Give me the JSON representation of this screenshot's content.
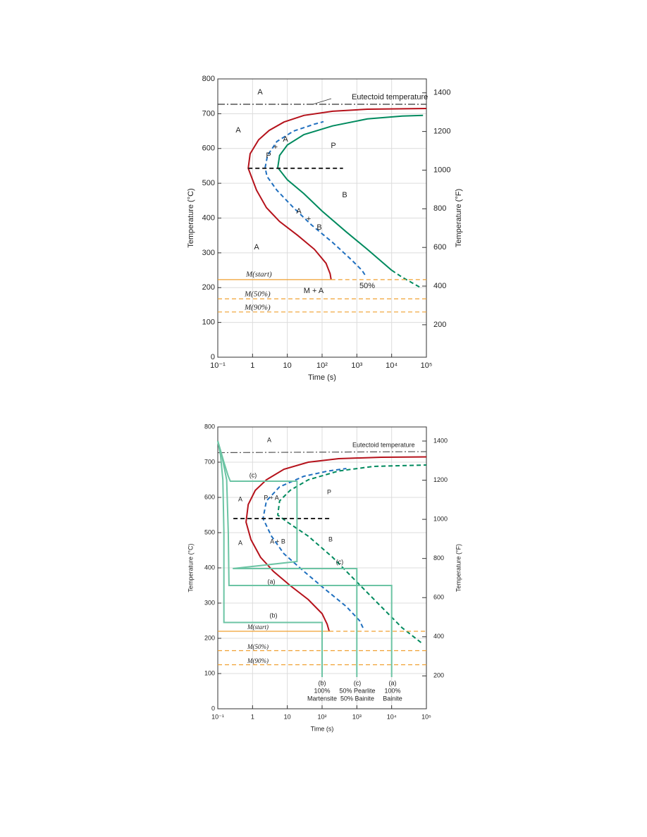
{
  "chart_data": [
    {
      "type": "line",
      "xscale": "log",
      "grid": true,
      "xlabel": "Time (s)",
      "ylabel": "Temperature (°C)",
      "y2label": "Temperature (°F)",
      "xlim": [
        0.1,
        100000
      ],
      "xticks": [
        {
          "value": 0.1,
          "label": "10⁻¹"
        },
        1,
        10,
        {
          "value": 100,
          "label": "10²"
        },
        {
          "value": 1000,
          "label": "10³"
        },
        {
          "value": 10000,
          "label": "10⁴"
        },
        {
          "value": 100000,
          "label": "10⁵"
        }
      ],
      "ylim": [
        0,
        800
      ],
      "yticks": [
        0,
        100,
        200,
        300,
        400,
        500,
        600,
        700,
        800
      ],
      "y2lim": [
        32,
        1472
      ],
      "y2ticks": [
        200,
        400,
        600,
        800,
        1000,
        1200,
        1400
      ],
      "series": [
        {
          "color": "#b5121b",
          "dash": "solid",
          "x": [
            182,
            170,
            130,
            60,
            20,
            6,
            2.5,
            1.3,
            0.75,
            0.85,
            1.5,
            3,
            8,
            30,
            200,
            2000,
            100000
          ],
          "values": [
            223,
            240,
            270,
            310,
            350,
            390,
            430,
            480,
            543,
            585,
            625,
            652,
            676,
            695,
            707,
            713,
            715
          ]
        },
        {
          "color": "#1f6fbf",
          "dash": "dashed",
          "x": [
            1700,
            1400,
            700,
            200,
            50,
            15,
            5,
            2.6,
            2.3,
            2.7,
            5,
            15,
            60,
            110
          ],
          "values": [
            237,
            250,
            280,
            330,
            380,
            430,
            480,
            520,
            545,
            580,
            620,
            650,
            670,
            677
          ]
        },
        {
          "color": "#008a5e",
          "dash": "solid",
          "x": [
            10000,
            2000,
            500,
            100,
            30,
            10,
            5.3,
            6,
            10,
            30,
            200,
            2000,
            20000,
            80000
          ],
          "values": [
            250,
            310,
            360,
            420,
            470,
            510,
            545,
            580,
            610,
            640,
            665,
            685,
            693,
            695
          ]
        },
        {
          "color": "#008a5e",
          "dash": "dashed",
          "x": [
            63000,
            20000,
            10000
          ],
          "values": [
            202,
            230,
            250
          ]
        },
        {
          "color": "#222222",
          "dash": "dashed",
          "x": [
            0.75,
            400
          ],
          "values": [
            543,
            543
          ]
        },
        {
          "color": "#333333",
          "dash": "dashdot",
          "x": [
            0.1,
            100000
          ],
          "values": [
            727,
            727
          ]
        },
        {
          "color": "#f0a030",
          "dash": "solid",
          "x": [
            0.1,
            182
          ],
          "values": [
            223,
            223
          ]
        },
        {
          "color": "#f0a030",
          "dash": "dashed",
          "x": [
            182,
            100000
          ],
          "values": [
            223,
            223
          ]
        },
        {
          "color": "#f0a030",
          "dash": "dashed",
          "x": [
            0.1,
            100000
          ],
          "values": [
            168,
            168
          ]
        },
        {
          "color": "#f0a030",
          "dash": "dashed",
          "x": [
            0.1,
            100000
          ],
          "values": [
            130,
            130
          ]
        }
      ],
      "annotations": [
        "A",
        "Eutectoid temperature",
        "A",
        "P",
        "+",
        "A",
        "P",
        "B",
        "A",
        "+",
        "B",
        "A",
        "M(start)",
        "50%",
        "M + A",
        "M(50%)",
        "M(90%)"
      ]
    },
    {
      "type": "line",
      "xscale": "log",
      "grid": true,
      "xlabel": "Time (s)",
      "ylabel": "Temperature (°C)",
      "y2label": "Temperature (°F)",
      "xlim": [
        0.1,
        100000
      ],
      "xticks": [
        {
          "value": 0.1,
          "label": "10⁻¹"
        },
        1,
        10,
        {
          "value": 100,
          "label": "10²"
        },
        {
          "value": 1000,
          "label": "10³"
        },
        {
          "value": 10000,
          "label": "10⁴"
        },
        {
          "value": 100000,
          "label": "10⁵"
        }
      ],
      "ylim": [
        0,
        800
      ],
      "yticks": [
        0,
        100,
        200,
        300,
        400,
        500,
        600,
        700,
        800
      ],
      "y2lim": [
        32,
        1472
      ],
      "y2ticks": [
        200,
        400,
        600,
        800,
        1000,
        1200,
        1400
      ],
      "series": [
        {
          "color": "#b5121b",
          "dash": "solid",
          "x": [
            160,
            140,
            100,
            40,
            12,
            4,
            1.7,
            0.9,
            0.65,
            0.75,
            1.2,
            2.5,
            8,
            40,
            300,
            5000,
            100000
          ],
          "values": [
            220,
            240,
            270,
            310,
            350,
            390,
            430,
            480,
            530,
            580,
            620,
            650,
            680,
            700,
            710,
            714,
            715
          ]
        },
        {
          "color": "#1f6fbf",
          "dash": "dashed",
          "x": [
            1500,
            1200,
            500,
            120,
            30,
            8,
            3.5,
            2,
            2.5,
            6,
            30,
            150,
            500
          ],
          "values": [
            230,
            250,
            290,
            340,
            390,
            440,
            490,
            540,
            590,
            630,
            660,
            675,
            682
          ]
        },
        {
          "color": "#008a5e",
          "dash": "dashed",
          "x": [
            70000,
            20000,
            5000,
            1000,
            200,
            40,
            10,
            5.3,
            6,
            12,
            40,
            300,
            3000,
            100000
          ],
          "values": [
            188,
            230,
            290,
            360,
            430,
            490,
            530,
            550,
            590,
            620,
            650,
            675,
            688,
            692
          ]
        },
        {
          "color": "#222222",
          "dash": "dashed",
          "x": [
            0.28,
            165
          ],
          "values": [
            540,
            540
          ]
        },
        {
          "color": "#555555",
          "dash": "dashdot",
          "x": [
            0.1,
            100000
          ],
          "values": [
            727,
            730
          ]
        },
        {
          "color": "#f0a030",
          "dash": "solid",
          "x": [
            0.1,
            160
          ],
          "values": [
            220,
            220
          ]
        },
        {
          "color": "#f0a030",
          "dash": "dashed",
          "x": [
            160,
            100000
          ],
          "values": [
            220,
            220
          ]
        },
        {
          "color": "#f0a030",
          "dash": "dashed",
          "x": [
            0.1,
            100000
          ],
          "values": [
            165,
            165
          ]
        },
        {
          "color": "#f0a030",
          "dash": "dashed",
          "x": [
            0.1,
            100000
          ],
          "values": [
            125,
            125
          ]
        },
        {
          "color": "#6cc4a4",
          "dash": "solid",
          "x": [
            0.1,
            0.13,
            0.18,
            0.2,
            0.21,
            10000,
            10000
          ],
          "values": [
            760,
            720,
            650,
            500,
            350,
            350,
            90
          ]
        },
        {
          "color": "#6cc4a4",
          "dash": "solid",
          "x": [
            0.1,
            0.12,
            0.14,
            0.15,
            0.15,
            100,
            100
          ],
          "values": [
            760,
            720,
            650,
            500,
            245,
            245,
            90
          ]
        },
        {
          "color": "#6cc4a4",
          "dash": "solid",
          "x": [
            0.1,
            0.15,
            0.2,
            0.23,
            19,
            19,
            0.27,
            1000,
            1000
          ],
          "values": [
            760,
            700,
            660,
            646,
            646,
            418,
            398,
            398,
            90
          ]
        }
      ],
      "annotations": [
        "A",
        "Eutectoid temperature",
        "(c)",
        "A",
        "P + A",
        "P",
        "A",
        "A + B",
        "B",
        "(c)",
        "(a)",
        "(b)",
        "M(start)",
        "M(50%)",
        "M(90%)",
        "(b)",
        "100%",
        "Martensite",
        "(c)",
        "50% Pearlite",
        "50% Bainite",
        "(a)",
        "100%",
        "Bainite"
      ]
    }
  ]
}
